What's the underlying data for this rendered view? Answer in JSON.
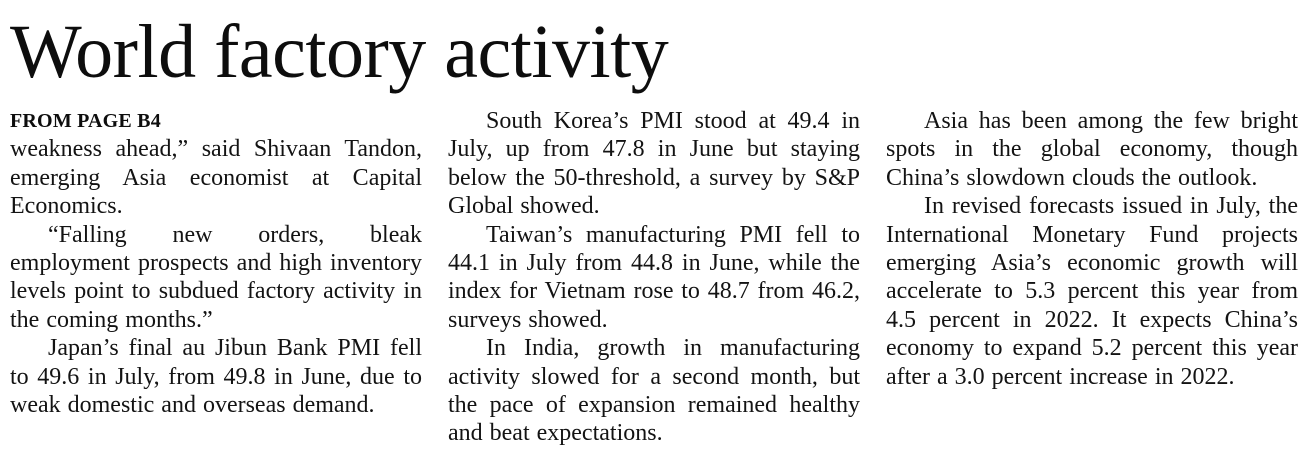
{
  "article": {
    "headline": "World factory activity",
    "kicker": "FROM PAGE B4",
    "colors": {
      "text": "#131313",
      "background": "#ffffff"
    },
    "columns": [
      {
        "paragraphs": [
          {
            "text": "weakness ahead,” said Shivaan Tandon, emerging Asia economist at Capital Economics."
          },
          {
            "text": "“Falling new orders, bleak employment prospects and high inventory levels point to subdued factory activity in the coming months.”"
          },
          {
            "text": "Japan’s final au Jibun Bank PMI fell to 49.6 in July, from 49.8 in June, due to weak domestic and overseas demand."
          }
        ]
      },
      {
        "paragraphs": [
          {
            "text": "South Korea’s PMI stood at 49.4 in July, up from 47.8 in June but staying below the 50-threshold, a survey by S&P Global showed."
          },
          {
            "text": "Taiwan’s manufacturing PMI fell to 44.1 in July from 44.8 in June, while the index for Vietnam rose to 48.7 from 46.2, surveys showed."
          },
          {
            "text": "In India, growth in manufacturing activity slowed for a second month, but the pace of expansion remained healthy and beat expectations."
          }
        ]
      },
      {
        "paragraphs": [
          {
            "text": "Asia has been among the few bright spots in the global economy, though China’s slowdown clouds the outlook."
          },
          {
            "text": "In revised forecasts issued in July, the International Monetary Fund projects emerging Asia’s economic growth will accelerate to 5.3 percent this year from 4.5 percent in 2022. It expects China’s economy to expand 5.2 percent this year after a 3.0 percent increase in 2022."
          }
        ]
      }
    ]
  }
}
